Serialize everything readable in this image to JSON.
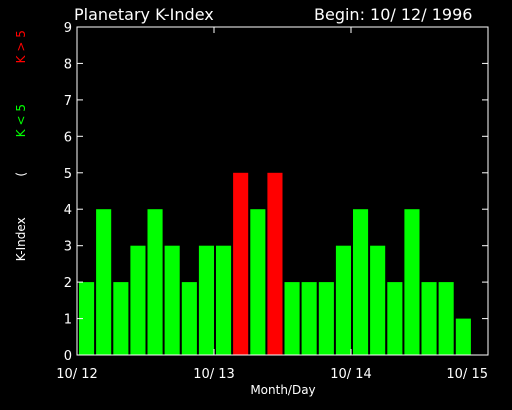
{
  "header": {
    "title": "Planetary K-Index",
    "begin": "Begin: 10/ 12/ 1996"
  },
  "colors": {
    "background": "#000000",
    "foreground": "#ffffff",
    "low": "#00ff00",
    "high": "#ff0000"
  },
  "legend": {
    "label": "K-Index",
    "paren": "(",
    "low": "K < 5",
    "high": "K > 5"
  },
  "chart_data": {
    "type": "bar",
    "title": "Planetary K-Index",
    "subtitle": "Begin: 10/ 12/ 1996",
    "xlabel": "Month/Day",
    "ylabel": "K-Index",
    "ylim": [
      0,
      9
    ],
    "yticks": [
      0,
      1,
      2,
      3,
      4,
      5,
      6,
      7,
      8,
      9
    ],
    "xticks": [
      "10/ 12",
      "10/ 13",
      "10/ 14",
      "10/ 15"
    ],
    "bars_per_day": 8,
    "values": [
      2,
      4,
      2,
      3,
      4,
      3,
      2,
      3,
      3,
      5,
      4,
      5,
      2,
      2,
      2,
      3,
      4,
      3,
      2,
      4,
      2,
      2,
      1
    ],
    "threshold": 5,
    "grid": false
  }
}
